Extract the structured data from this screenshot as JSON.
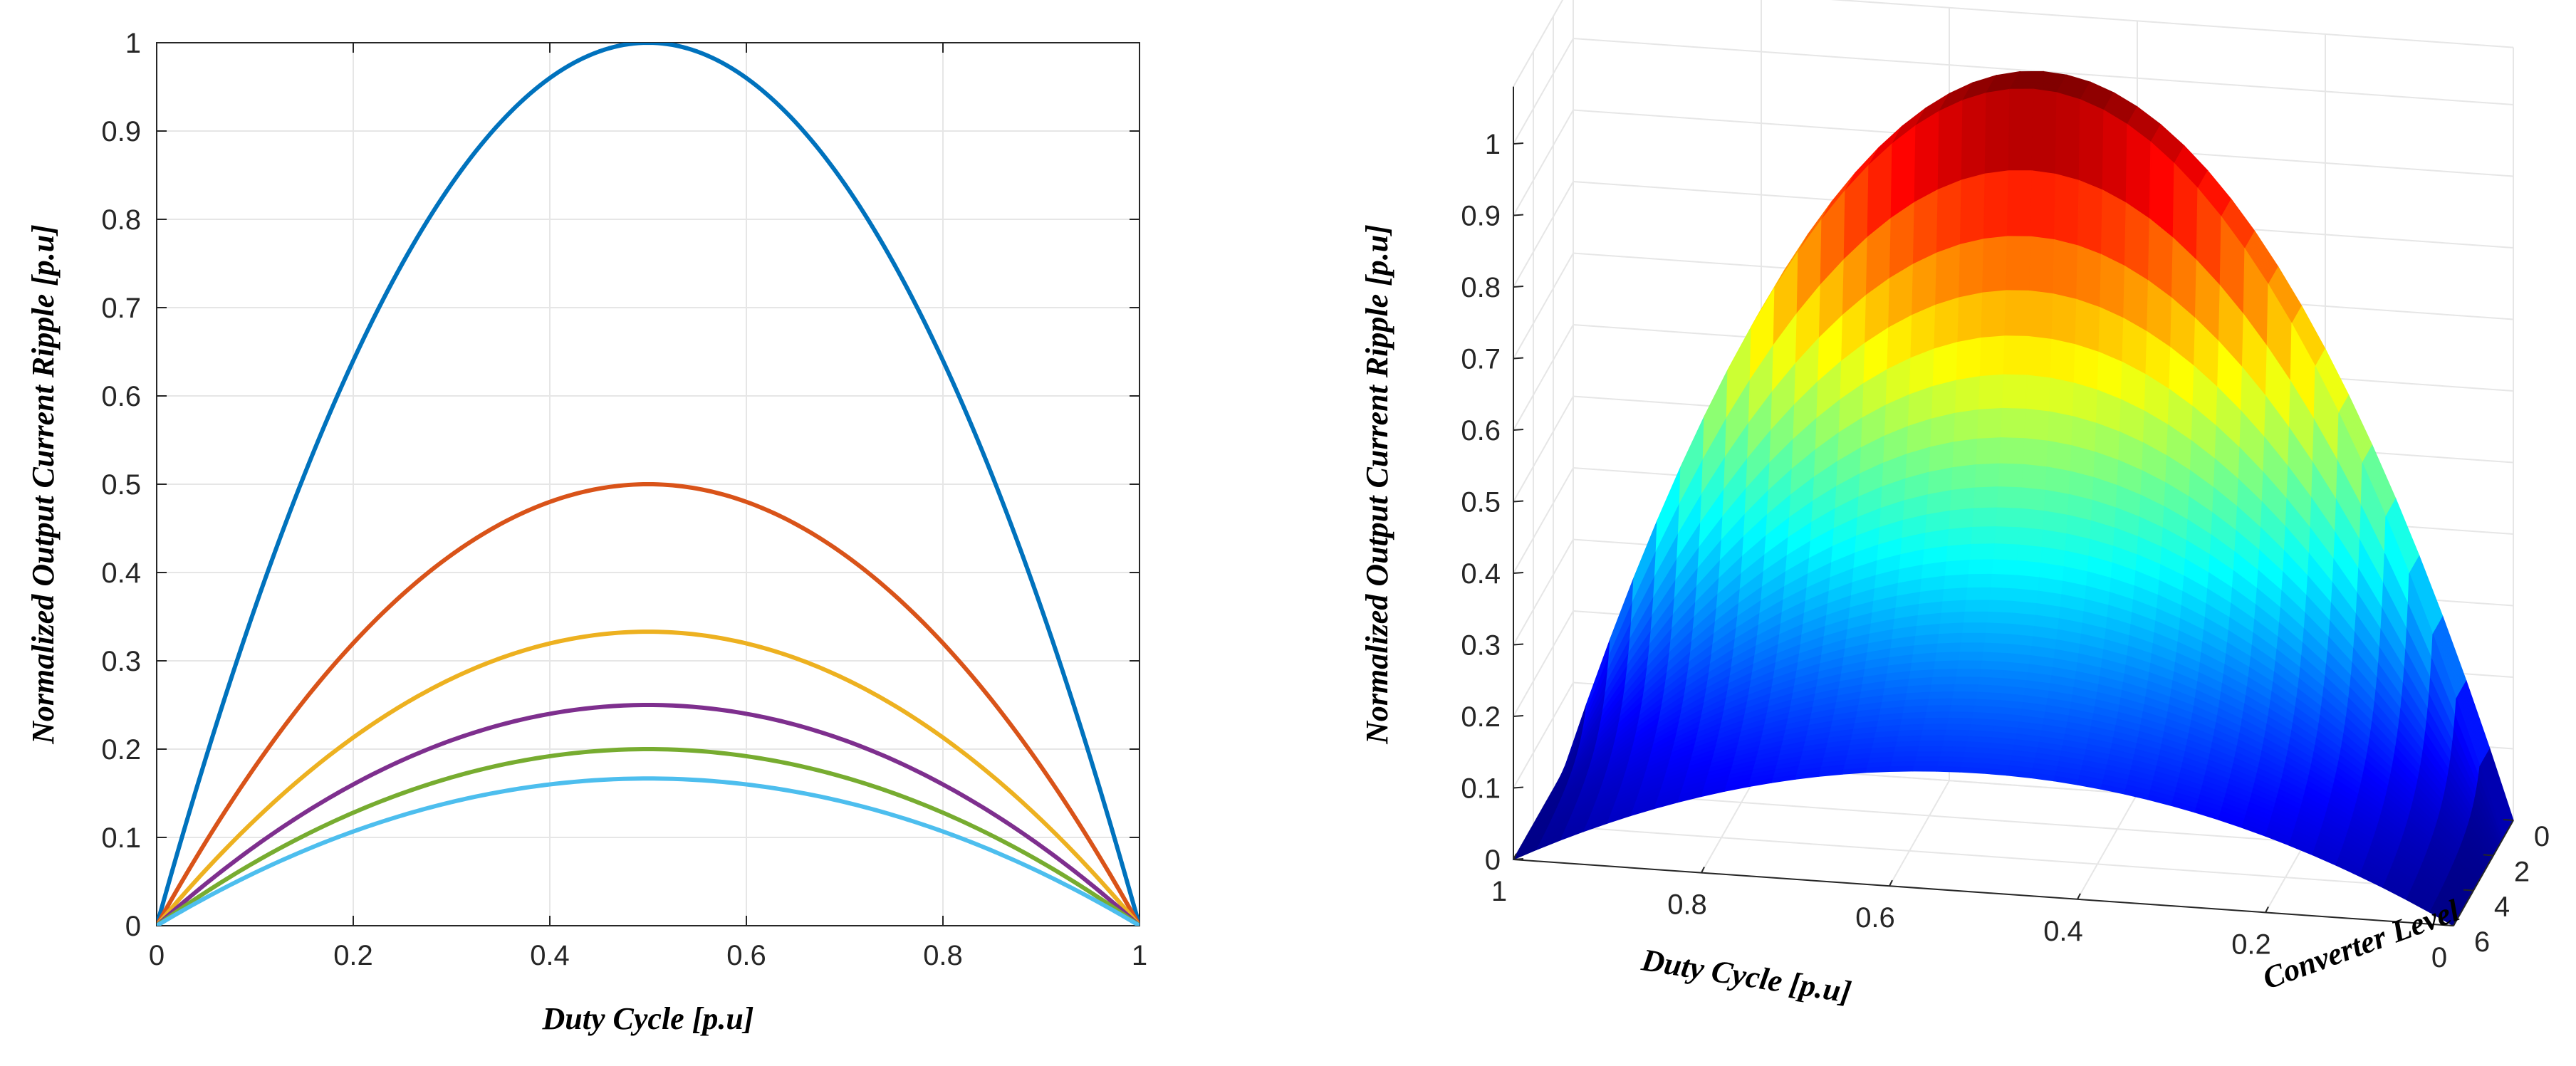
{
  "charts": [
    {
      "type": "line",
      "xlabel": "Duty Cycle [p.u]",
      "ylabel": "Normalized Output Current Ripple [p.u]",
      "xlim": [
        0,
        1
      ],
      "ylim": [
        0,
        1
      ],
      "x_ticks": [
        "0",
        "0.2",
        "0.4",
        "0.6",
        "0.8",
        "1"
      ],
      "y_ticks": [
        "0",
        "0.1",
        "0.2",
        "0.3",
        "0.4",
        "0.5",
        "0.6",
        "0.7",
        "0.8",
        "0.9",
        "1"
      ],
      "grid": true,
      "series": [
        {
          "peak": 1.0,
          "color": "#0072BD",
          "x": [
            0,
            0.1,
            0.2,
            0.3,
            0.4,
            0.5,
            0.6,
            0.7,
            0.8,
            0.9,
            1
          ],
          "values": [
            0,
            0.36,
            0.64,
            0.84,
            0.96,
            1.0,
            0.96,
            0.84,
            0.64,
            0.36,
            0
          ]
        },
        {
          "peak": 0.5,
          "color": "#D95319",
          "x": [
            0,
            0.1,
            0.2,
            0.3,
            0.4,
            0.5,
            0.6,
            0.7,
            0.8,
            0.9,
            1
          ],
          "values": [
            0,
            0.18,
            0.32,
            0.42,
            0.48,
            0.5,
            0.48,
            0.42,
            0.32,
            0.18,
            0
          ]
        },
        {
          "peak": 0.333,
          "color": "#EDB120",
          "x": [
            0,
            0.1,
            0.2,
            0.3,
            0.4,
            0.5,
            0.6,
            0.7,
            0.8,
            0.9,
            1
          ],
          "values": [
            0,
            0.12,
            0.213,
            0.28,
            0.32,
            0.333,
            0.32,
            0.28,
            0.213,
            0.12,
            0
          ]
        },
        {
          "peak": 0.25,
          "color": "#7E2F8E",
          "x": [
            0,
            0.1,
            0.2,
            0.3,
            0.4,
            0.5,
            0.6,
            0.7,
            0.8,
            0.9,
            1
          ],
          "values": [
            0,
            0.09,
            0.16,
            0.21,
            0.24,
            0.25,
            0.24,
            0.21,
            0.16,
            0.09,
            0
          ]
        },
        {
          "peak": 0.2,
          "color": "#77AC30",
          "x": [
            0,
            0.1,
            0.2,
            0.3,
            0.4,
            0.5,
            0.6,
            0.7,
            0.8,
            0.9,
            1
          ],
          "values": [
            0,
            0.072,
            0.128,
            0.168,
            0.192,
            0.2,
            0.192,
            0.168,
            0.128,
            0.072,
            0
          ]
        },
        {
          "peak": 0.1667,
          "color": "#4DBEEE",
          "x": [
            0,
            0.1,
            0.2,
            0.3,
            0.4,
            0.5,
            0.6,
            0.7,
            0.8,
            0.9,
            1
          ],
          "values": [
            0,
            0.06,
            0.107,
            0.14,
            0.16,
            0.1667,
            0.16,
            0.14,
            0.107,
            0.06,
            0
          ]
        }
      ]
    },
    {
      "type": "surface",
      "xlabel": "Duty Cycle [p.u]",
      "ylabel": "Normalized Output Current Ripple [p.u]",
      "depth_label": "Converter Level",
      "xlim": [
        0,
        1
      ],
      "depth_lim": [
        0,
        6
      ],
      "zlim": [
        0,
        1
      ],
      "x_ticks": [
        "1",
        "0.8",
        "0.6",
        "0.4",
        "0.2",
        "0"
      ],
      "depth_ticks": [
        "0",
        "2",
        "4",
        "6"
      ],
      "z_ticks": [
        "0",
        "0.1",
        "0.2",
        "0.3",
        "0.4",
        "0.5",
        "0.6",
        "0.7",
        "0.8",
        "0.9",
        "1"
      ],
      "levels": [
        1,
        2,
        3,
        4,
        5,
        6
      ],
      "grid": true,
      "colormap": "jet"
    }
  ]
}
